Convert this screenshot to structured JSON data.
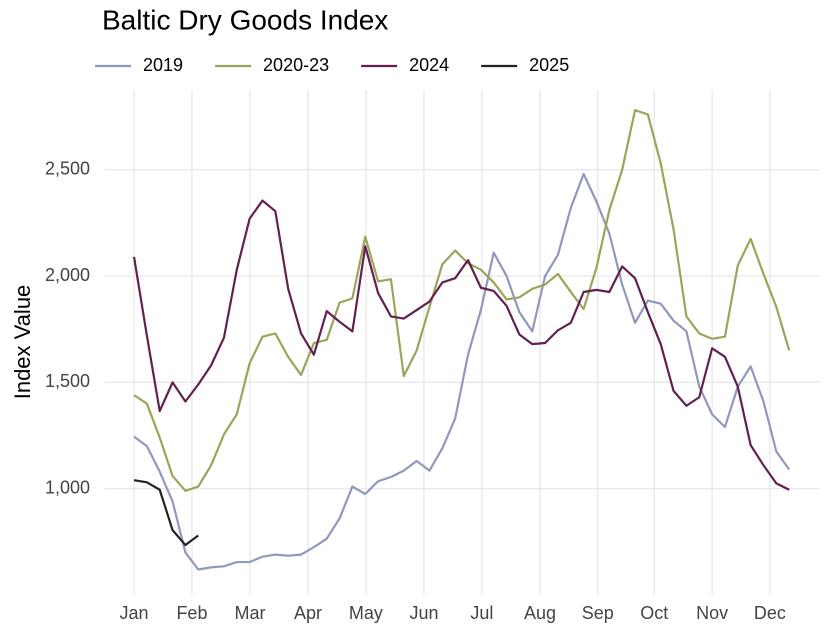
{
  "chart_data": {
    "type": "line",
    "title": "Baltic Dry Goods Index",
    "y_label": "Index Value",
    "x": [
      0,
      1,
      2,
      3,
      4,
      5,
      6,
      7,
      8,
      9,
      10,
      11,
      12,
      13,
      14,
      15,
      16,
      17,
      18,
      19,
      20,
      21,
      22,
      23,
      24,
      25,
      26,
      27,
      28,
      29,
      30,
      31,
      32,
      33,
      34,
      35,
      36,
      37,
      38,
      39,
      40,
      41,
      42,
      43,
      44,
      45,
      46,
      47,
      48,
      49,
      50,
      51
    ],
    "xlim": [
      -2.26,
      53.4
    ],
    "xticks": [
      {
        "value": 0,
        "label": "Jan"
      },
      {
        "value": 4.51,
        "label": "Feb"
      },
      {
        "value": 9.03,
        "label": "Mar"
      },
      {
        "value": 13.54,
        "label": "Apr"
      },
      {
        "value": 18.05,
        "label": "May"
      },
      {
        "value": 22.57,
        "label": "Jun"
      },
      {
        "value": 27.08,
        "label": "Jul"
      },
      {
        "value": 31.6,
        "label": "Aug"
      },
      {
        "value": 36.1,
        "label": "Sep"
      },
      {
        "value": 40.5,
        "label": "Oct"
      },
      {
        "value": 45.0,
        "label": "Nov"
      },
      {
        "value": 49.5,
        "label": "Dec"
      }
    ],
    "ylim": [
      500,
      2875
    ],
    "yticks": [
      {
        "value": 1000,
        "label": "1,000"
      },
      {
        "value": 1500,
        "label": "1,500"
      },
      {
        "value": 2000,
        "label": "2,000"
      },
      {
        "value": 2500,
        "label": "2,500"
      }
    ],
    "grid": true,
    "legend": "top",
    "series": [
      {
        "name": "2019",
        "color": "#8f98bd",
        "values": [
          1245,
          1200,
          1080,
          940,
          700,
          620,
          630,
          635,
          655,
          655,
          680,
          690,
          685,
          690,
          725,
          765,
          860,
          1010,
          975,
          1035,
          1055,
          1085,
          1130,
          1085,
          1190,
          1330,
          1630,
          1840,
          2110,
          2000,
          1830,
          1740,
          2000,
          2100,
          2320,
          2480,
          2350,
          2200,
          1960,
          1780,
          1885,
          1870,
          1790,
          1740,
          1480,
          1350,
          1290,
          1480,
          1575,
          1410,
          1175,
          1090
        ]
      },
      {
        "name": "2020-23",
        "color": "#9aa55a",
        "values": [
          1440,
          1400,
          1240,
          1060,
          990,
          1010,
          1110,
          1255,
          1350,
          1590,
          1715,
          1730,
          1620,
          1535,
          1685,
          1700,
          1875,
          1895,
          2185,
          1975,
          1985,
          1530,
          1650,
          1855,
          2055,
          2120,
          2060,
          2030,
          1970,
          1890,
          1900,
          1940,
          1960,
          2010,
          1925,
          1845,
          2040,
          2310,
          2500,
          2780,
          2760,
          2530,
          2220,
          1810,
          1730,
          1705,
          1715,
          2050,
          2175,
          2010,
          1855,
          1650
        ]
      },
      {
        "name": "2024",
        "color": "#62204f",
        "values": [
          2090,
          1720,
          1365,
          1500,
          1410,
          1490,
          1580,
          1710,
          2030,
          2270,
          2355,
          2305,
          1940,
          1730,
          1630,
          1835,
          1785,
          1740,
          2140,
          1920,
          1810,
          1800,
          1840,
          1880,
          1970,
          1990,
          2075,
          1945,
          1930,
          1860,
          1725,
          1680,
          1685,
          1745,
          1780,
          1925,
          1935,
          1925,
          2045,
          1990,
          1830,
          1680,
          1460,
          1390,
          1430,
          1660,
          1620,
          1480,
          1205,
          1110,
          1025,
          995
        ]
      },
      {
        "name": "2025",
        "color": "#222222",
        "values": [
          1040,
          1030,
          995,
          805,
          735,
          780,
          null,
          null,
          null,
          null,
          null,
          null,
          null,
          null,
          null,
          null,
          null,
          null,
          null,
          null,
          null,
          null,
          null,
          null,
          null,
          null,
          null,
          null,
          null,
          null,
          null,
          null,
          null,
          null,
          null,
          null,
          null,
          null,
          null,
          null,
          null,
          null,
          null,
          null,
          null,
          null,
          null,
          null,
          null,
          null,
          null,
          null
        ]
      }
    ]
  }
}
